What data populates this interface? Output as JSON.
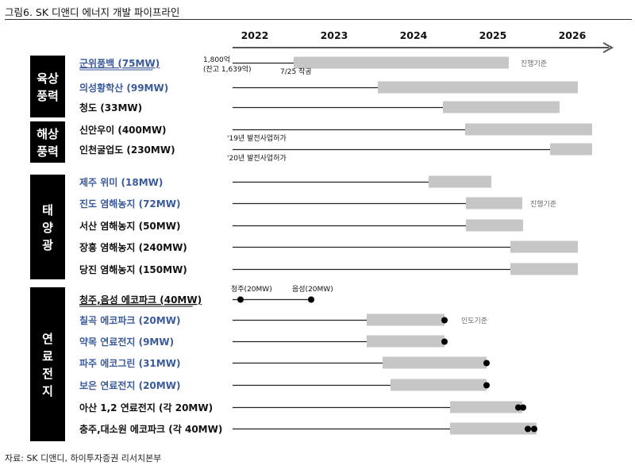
{
  "figure": {
    "title": "그림6. SK 디앤디 에너지 개발 파이프라인",
    "source": "자료: SK 디앤디,  하이투자증권  리서치본부"
  },
  "colors": {
    "bar": "#c6c6c6",
    "line": "#222222",
    "highlight_text": "#3a5a9a",
    "category_bg": "#000000"
  },
  "chart_data": {
    "type": "gantt",
    "x_axis": {
      "labels": [
        "2022",
        "2023",
        "2024",
        "2025",
        "2026"
      ]
    },
    "categories": [
      {
        "label": "육상\n풍력",
        "rows": [
          0,
          1,
          2
        ]
      },
      {
        "label": "해상\n풍력",
        "rows": [
          3,
          4
        ]
      },
      {
        "label": "태\n양\n광",
        "rows": [
          5,
          6,
          7,
          8,
          9
        ]
      },
      {
        "label": "연\n료\n전\n지",
        "rows": [
          10,
          11,
          12,
          13,
          14,
          15,
          16
        ]
      }
    ],
    "rows": [
      {
        "name": "군위풍백 (75MW)",
        "highlight": true,
        "underline": true,
        "line_start": 2022.0,
        "bar": [
          2022.77,
          2025.48
        ]
      },
      {
        "name": "의성황학산 (99MW)",
        "highlight": true,
        "underline": false,
        "line_start": 2022.0,
        "bar": [
          2023.83,
          2026.35
        ]
      },
      {
        "name": "청도 (33MW)",
        "highlight": false,
        "underline": false,
        "line_start": 2022.0,
        "bar": [
          2024.65,
          2026.12
        ]
      },
      {
        "name": "신안우이 (400MW)",
        "highlight": false,
        "underline": false,
        "line_start": 2022.0,
        "bar": [
          2024.93,
          2026.53
        ]
      },
      {
        "name": "인천굴업도 (230MW)",
        "highlight": false,
        "underline": false,
        "line_start": 2022.0,
        "bar": [
          2026.0,
          2026.53
        ]
      },
      {
        "name": "제주 위미 (18MW)",
        "highlight": true,
        "underline": false,
        "line_start": 2022.0,
        "bar": [
          2024.47,
          2025.26
        ]
      },
      {
        "name": "진도 염해농지 (72MW)",
        "highlight": true,
        "underline": false,
        "line_start": 2022.0,
        "bar": [
          2024.94,
          2025.65
        ]
      },
      {
        "name": "서산 염해농지 (50MW)",
        "highlight": false,
        "underline": false,
        "line_start": 2022.0,
        "bar": [
          2024.94,
          2025.66
        ]
      },
      {
        "name": "장흥 염해농지 (240MW)",
        "highlight": false,
        "underline": false,
        "line_start": 2022.0,
        "bar": [
          2025.5,
          2026.35
        ]
      },
      {
        "name": "당진 염해농지 (150MW)",
        "highlight": false,
        "underline": false,
        "line_start": 2022.0,
        "bar": [
          2025.5,
          2026.35
        ]
      },
      {
        "name": "청주,음성 에코파크 (40MW)",
        "highlight": false,
        "underline": true,
        "line_start": 2022.0,
        "line_end": 2022.99,
        "bar": null,
        "dots": [
          2022.1,
          2022.99
        ]
      },
      {
        "name": "칠곡 에코파크 (20MW)",
        "highlight": true,
        "underline": false,
        "line_start": 2022.0,
        "bar": [
          2023.69,
          2024.67
        ],
        "dots": [
          2024.67
        ]
      },
      {
        "name": "약목 연료전지 (9MW)",
        "highlight": true,
        "underline": false,
        "line_start": 2022.0,
        "bar": [
          2023.69,
          2024.67
        ],
        "dots": [
          2024.67
        ]
      },
      {
        "name": "파주 에코그린 (31MW)",
        "highlight": true,
        "underline": false,
        "line_start": 2022.0,
        "bar": [
          2023.89,
          2025.2
        ],
        "dots": [
          2025.2
        ]
      },
      {
        "name": "보은 연료전지 (20MW)",
        "highlight": true,
        "underline": false,
        "line_start": 2022.0,
        "bar": [
          2023.99,
          2025.2
        ],
        "dots": [
          2025.2
        ]
      },
      {
        "name": "아산 1,2 연료전지 (각 20MW)",
        "highlight": false,
        "underline": false,
        "line_start": 2022.0,
        "bar": [
          2024.74,
          2025.65
        ],
        "dots": [
          2025.6,
          2025.66
        ]
      },
      {
        "name": "충주,대소원 에코파크 (각 40MW)",
        "highlight": false,
        "underline": false,
        "line_start": 2022.0,
        "bar": [
          2024.74,
          2025.83
        ],
        "dots": [
          2025.72,
          2025.8
        ]
      }
    ],
    "annotations": [
      {
        "row": 0,
        "text": "1,800억",
        "at": 2021.6,
        "pos": "above-left",
        "color": "#111"
      },
      {
        "row": 0,
        "text": "(잔고 1,639억)",
        "at": 2021.6,
        "pos": "below-left",
        "color": "#111"
      },
      {
        "row": 0,
        "text": "7/25 착공",
        "at": 2022.6,
        "pos": "below",
        "color": "#111"
      },
      {
        "row": 0,
        "text": "진행기준",
        "at": 2025.6,
        "pos": "right",
        "color": "#666"
      },
      {
        "row": 3,
        "text": "'19년 발전사업허가",
        "at": 2021.93,
        "pos": "below",
        "color": "#111"
      },
      {
        "row": 4,
        "text": "'20년 발전사업허가",
        "at": 2021.93,
        "pos": "below",
        "color": "#111"
      },
      {
        "row": 6,
        "text": "진행기준",
        "at": 2025.72,
        "pos": "right",
        "color": "#666"
      },
      {
        "row": 10,
        "text": "청주(20MW)",
        "at": 2021.98,
        "pos": "above",
        "color": "#111"
      },
      {
        "row": 10,
        "text": "음성(20MW)",
        "at": 2022.75,
        "pos": "above",
        "color": "#111"
      },
      {
        "row": 11,
        "text": "인도기준",
        "at": 2024.85,
        "pos": "right",
        "color": "#666"
      }
    ]
  }
}
